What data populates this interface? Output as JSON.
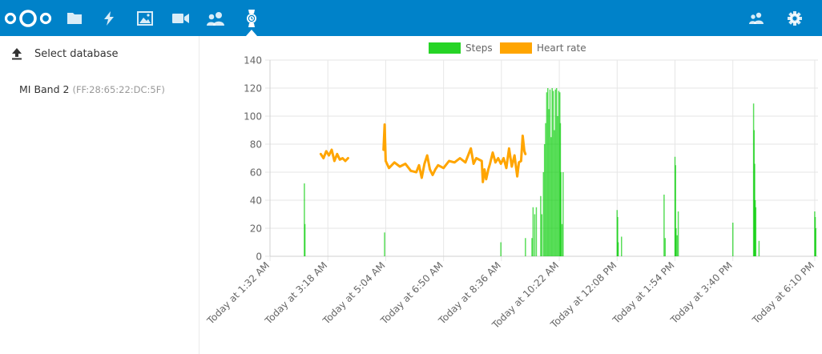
{
  "topbar": {
    "color": "#0082c9",
    "logo_icon": "nextcloud-logo",
    "apps": [
      {
        "name": "Files",
        "icon": "folder-icon"
      },
      {
        "name": "Activity",
        "icon": "lightning-icon"
      },
      {
        "name": "Gallery",
        "icon": "image-icon"
      },
      {
        "name": "Video",
        "icon": "video-camera-icon"
      },
      {
        "name": "Contacts",
        "icon": "contacts-icon"
      },
      {
        "name": "Health",
        "icon": "watch-icon",
        "active": true
      }
    ],
    "right_icons": [
      "contacts-menu-icon",
      "settings-gear-icon"
    ]
  },
  "sidebar": {
    "select_database_label": "Select database",
    "upload_icon": "upload-icon",
    "device": {
      "name": "MI Band 2",
      "mac": "(FF:28:65:22:DC:5F)"
    }
  },
  "chart_data": {
    "type": "bar",
    "title": "",
    "xlabel": "",
    "ylabel": "",
    "ylim": [
      0,
      140
    ],
    "y_ticks": [
      "0",
      "20",
      "40",
      "60",
      "80",
      "100",
      "120",
      "140"
    ],
    "x_tick_labels": [
      "Today at 1:32 AM",
      "Today at 3:18 AM",
      "Today at 5:04 AM",
      "Today at 6:50 AM",
      "Today at 8:36 AM",
      "Today at 10:22 AM",
      "Today at 12:08 PM",
      "Today at 1:54 PM",
      "Today at 3:40 PM",
      "Today at 6:10 PM"
    ],
    "grid": true,
    "legend_position": "top",
    "series": [
      {
        "name": "Steps",
        "type": "bar",
        "color": "#00cc00",
        "points": [
          {
            "x": "2:35 AM",
            "y": 52
          },
          {
            "x": "2:36 AM",
            "y": 23
          },
          {
            "x": "5:02 AM",
            "y": 17
          },
          {
            "x": "8:35 AM",
            "y": 10
          },
          {
            "x": "9:20 AM",
            "y": 13
          },
          {
            "x": "9:32 AM",
            "y": 13
          },
          {
            "x": "9:34 AM",
            "y": 35
          },
          {
            "x": "9:37 AM",
            "y": 30
          },
          {
            "x": "9:40 AM",
            "y": 35
          },
          {
            "x": "9:48 AM",
            "y": 43
          },
          {
            "x": "9:50 AM",
            "y": 30
          },
          {
            "x": "9:53 AM",
            "y": 60
          },
          {
            "x": "9:55 AM",
            "y": 80
          },
          {
            "x": "9:57 AM",
            "y": 95
          },
          {
            "x": "9:59 AM",
            "y": 117
          },
          {
            "x": "10:01 AM",
            "y": 120
          },
          {
            "x": "10:03 AM",
            "y": 105
          },
          {
            "x": "10:05 AM",
            "y": 119
          },
          {
            "x": "10:07 AM",
            "y": 85
          },
          {
            "x": "10:09 AM",
            "y": 120
          },
          {
            "x": "10:11 AM",
            "y": 118
          },
          {
            "x": "10:13 AM",
            "y": 90
          },
          {
            "x": "10:15 AM",
            "y": 119
          },
          {
            "x": "10:17 AM",
            "y": 120
          },
          {
            "x": "10:19 AM",
            "y": 100
          },
          {
            "x": "10:21 AM",
            "y": 118
          },
          {
            "x": "10:23 AM",
            "y": 117
          },
          {
            "x": "10:24 AM",
            "y": 95
          },
          {
            "x": "10:25 AM",
            "y": 60
          },
          {
            "x": "10:27 AM",
            "y": 23
          },
          {
            "x": "10:29 AM",
            "y": 60
          },
          {
            "x": "12:08 PM",
            "y": 33
          },
          {
            "x": "12:09 PM",
            "y": 28
          },
          {
            "x": "12:10 PM",
            "y": 10
          },
          {
            "x": "12:16 PM",
            "y": 14
          },
          {
            "x": "1:34 PM",
            "y": 44
          },
          {
            "x": "1:36 PM",
            "y": 13
          },
          {
            "x": "1:54 PM",
            "y": 71
          },
          {
            "x": "1:55 PM",
            "y": 65
          },
          {
            "x": "1:56 PM",
            "y": 20
          },
          {
            "x": "1:58 PM",
            "y": 15
          },
          {
            "x": "2:00 PM",
            "y": 32
          },
          {
            "x": "3:40 PM",
            "y": 24
          },
          {
            "x": "4:18 PM",
            "y": 109
          },
          {
            "x": "4:19 PM",
            "y": 90
          },
          {
            "x": "4:20 PM",
            "y": 66
          },
          {
            "x": "4:21 PM",
            "y": 40
          },
          {
            "x": "4:22 PM",
            "y": 35
          },
          {
            "x": "4:28 PM",
            "y": 11
          },
          {
            "x": "6:10 PM",
            "y": 32
          },
          {
            "x": "6:11 PM",
            "y": 28
          },
          {
            "x": "6:12 PM",
            "y": 20
          }
        ]
      },
      {
        "name": "Heart rate",
        "type": "line",
        "color": "#ffa500",
        "points": [
          {
            "x": "3:05 AM",
            "y": 73
          },
          {
            "x": "3:10 AM",
            "y": 70
          },
          {
            "x": "3:15 AM",
            "y": 75
          },
          {
            "x": "3:20 AM",
            "y": 72
          },
          {
            "x": "3:25 AM",
            "y": 76
          },
          {
            "x": "3:30 AM",
            "y": 68
          },
          {
            "x": "3:35 AM",
            "y": 73
          },
          {
            "x": "3:40 AM",
            "y": 69
          },
          {
            "x": "3:45 AM",
            "y": 70
          },
          {
            "x": "3:50 AM",
            "y": 68
          },
          {
            "x": "3:55 AM",
            "y": 70
          },
          {
            "x": "5:00 AM",
            "y": 76
          },
          {
            "x": "5:02 AM",
            "y": 94
          },
          {
            "x": "5:04 AM",
            "y": 68
          },
          {
            "x": "5:10 AM",
            "y": 63
          },
          {
            "x": "5:20 AM",
            "y": 67
          },
          {
            "x": "5:30 AM",
            "y": 64
          },
          {
            "x": "5:40 AM",
            "y": 66
          },
          {
            "x": "5:50 AM",
            "y": 61
          },
          {
            "x": "6:00 AM",
            "y": 60
          },
          {
            "x": "6:05 AM",
            "y": 65
          },
          {
            "x": "6:10 AM",
            "y": 56
          },
          {
            "x": "6:15 AM",
            "y": 66
          },
          {
            "x": "6:20 AM",
            "y": 72
          },
          {
            "x": "6:25 AM",
            "y": 62
          },
          {
            "x": "6:30 AM",
            "y": 58
          },
          {
            "x": "6:35 AM",
            "y": 62
          },
          {
            "x": "6:40 AM",
            "y": 65
          },
          {
            "x": "6:50 AM",
            "y": 63
          },
          {
            "x": "7:00 AM",
            "y": 68
          },
          {
            "x": "7:10 AM",
            "y": 67
          },
          {
            "x": "7:20 AM",
            "y": 70
          },
          {
            "x": "7:30 AM",
            "y": 67
          },
          {
            "x": "7:40 AM",
            "y": 77
          },
          {
            "x": "7:45 AM",
            "y": 66
          },
          {
            "x": "7:50 AM",
            "y": 70
          },
          {
            "x": "8:00 AM",
            "y": 68
          },
          {
            "x": "8:02 AM",
            "y": 53
          },
          {
            "x": "8:05 AM",
            "y": 62
          },
          {
            "x": "8:08 AM",
            "y": 55
          },
          {
            "x": "8:12 AM",
            "y": 62
          },
          {
            "x": "8:15 AM",
            "y": 66
          },
          {
            "x": "8:20 AM",
            "y": 74
          },
          {
            "x": "8:25 AM",
            "y": 67
          },
          {
            "x": "8:30 AM",
            "y": 70
          },
          {
            "x": "8:35 AM",
            "y": 66
          },
          {
            "x": "8:40 AM",
            "y": 70
          },
          {
            "x": "8:45 AM",
            "y": 63
          },
          {
            "x": "8:50 AM",
            "y": 77
          },
          {
            "x": "8:55 AM",
            "y": 64
          },
          {
            "x": "9:00 AM",
            "y": 72
          },
          {
            "x": "9:05 AM",
            "y": 57
          },
          {
            "x": "9:08 AM",
            "y": 67
          },
          {
            "x": "9:12 AM",
            "y": 68
          },
          {
            "x": "9:15 AM",
            "y": 86
          },
          {
            "x": "9:18 AM",
            "y": 75
          },
          {
            "x": "9:20 AM",
            "y": 73
          }
        ]
      }
    ]
  }
}
